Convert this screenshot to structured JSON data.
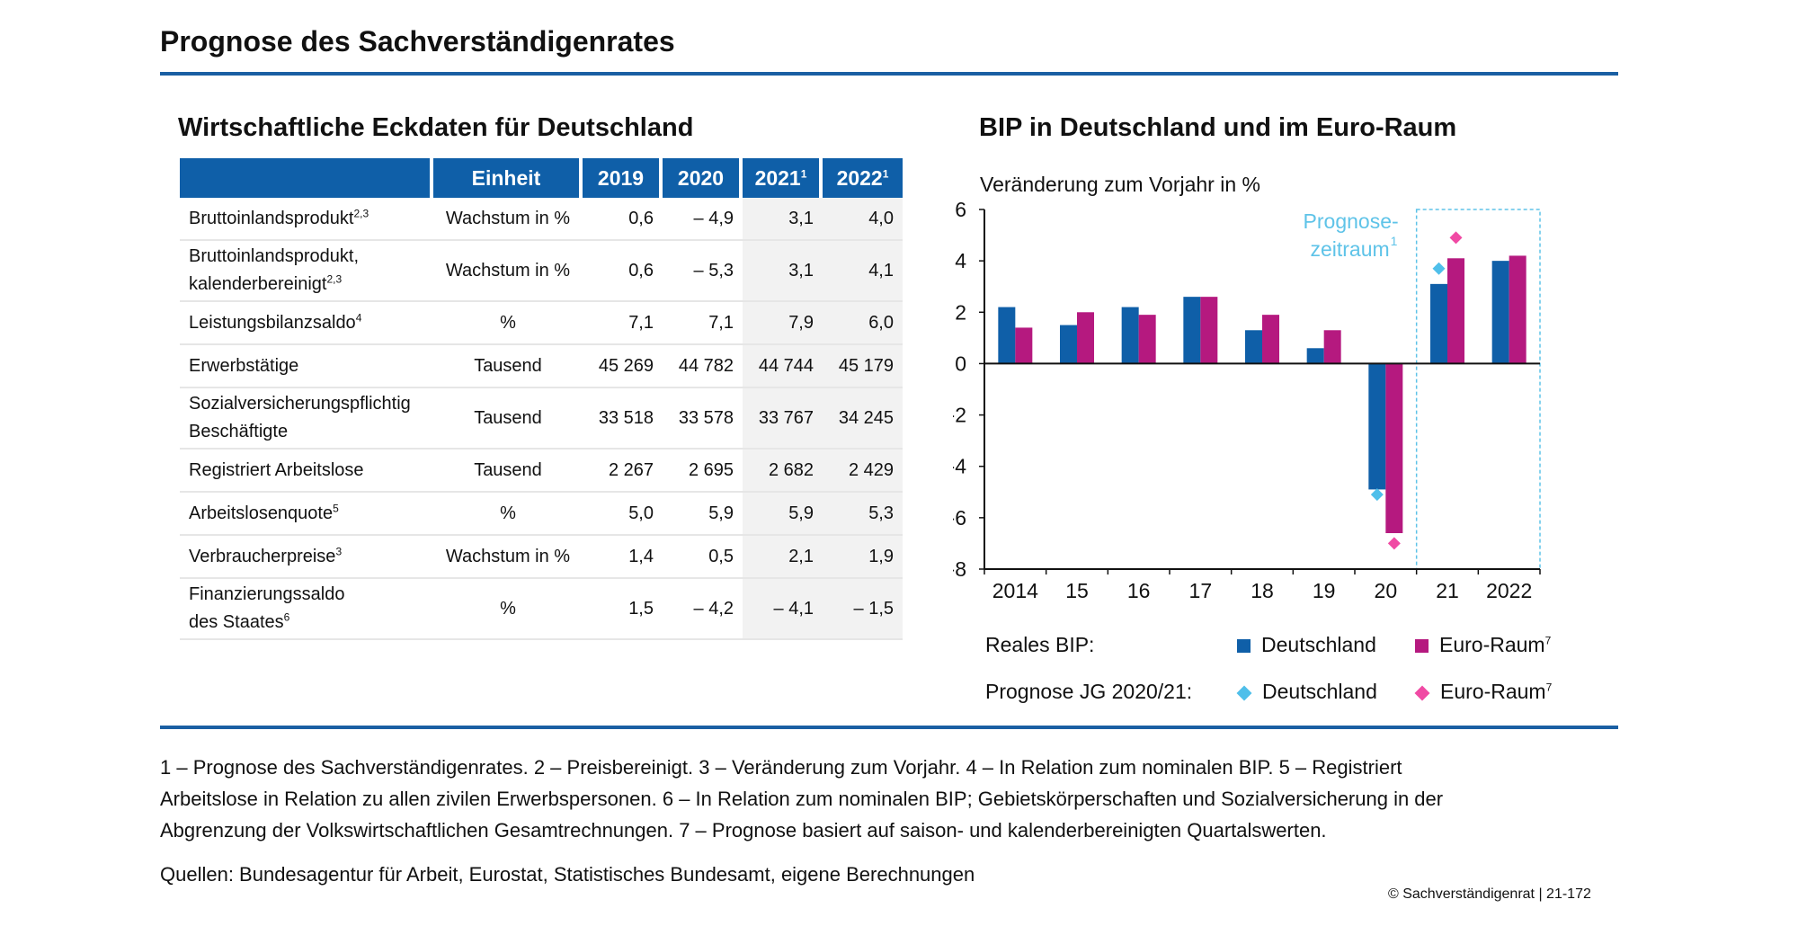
{
  "page_title": "Prognose des Sachverständigenrates",
  "table": {
    "title": "Wirtschaftliche Eckdaten für Deutschland",
    "headers": [
      {
        "text": "",
        "sup": ""
      },
      {
        "text": "Einheit",
        "sup": ""
      },
      {
        "text": "2019",
        "sup": ""
      },
      {
        "text": "2020",
        "sup": ""
      },
      {
        "text": "2021",
        "sup": "1"
      },
      {
        "text": "2022",
        "sup": "1"
      }
    ],
    "rows": [
      {
        "label_lines": [
          "Bruttoinlandsprodukt"
        ],
        "sup": "2,3",
        "unit": "Wachstum in %",
        "values": [
          "0,6",
          "– 4,9",
          "3,1",
          "4,0"
        ]
      },
      {
        "label_lines": [
          "Bruttoinlandsprodukt,",
          "kalenderbereinigt"
        ],
        "sup": "2,3",
        "unit": "Wachstum in %",
        "values": [
          "0,6",
          "– 5,3",
          "3,1",
          "4,1"
        ]
      },
      {
        "label_lines": [
          "Leistungsbilanzsaldo"
        ],
        "sup": "4",
        "unit": "%",
        "values": [
          "7,1",
          "7,1",
          "7,9",
          "6,0"
        ]
      },
      {
        "label_lines": [
          "Erwerbstätige"
        ],
        "sup": "",
        "unit": "Tausend",
        "values": [
          "45 269",
          "44 782",
          "44 744",
          "45 179"
        ]
      },
      {
        "label_lines": [
          "Sozialversicherungspflichtig",
          "Beschäftigte"
        ],
        "sup": "",
        "unit": "Tausend",
        "values": [
          "33 518",
          "33 578",
          "33 767",
          "34 245"
        ]
      },
      {
        "label_lines": [
          "Registriert Arbeitslose"
        ],
        "sup": "",
        "unit": "Tausend",
        "values": [
          "2 267",
          "2 695",
          "2 682",
          "2 429"
        ]
      },
      {
        "label_lines": [
          "Arbeitslosenquote"
        ],
        "sup": "5",
        "unit": "%",
        "values": [
          "5,0",
          "5,9",
          "5,9",
          "5,3"
        ]
      },
      {
        "label_lines": [
          "Verbraucherpreise"
        ],
        "sup": "3",
        "unit": "Wachstum in %",
        "values": [
          "1,4",
          "0,5",
          "2,1",
          "1,9"
        ]
      },
      {
        "label_lines": [
          "Finanzierungssaldo",
          "des Staates"
        ],
        "sup": "6",
        "unit": "%",
        "values": [
          "1,5",
          "– 4,2",
          "– 4,1",
          "– 1,5"
        ]
      }
    ]
  },
  "chart": {
    "title": "BIP in Deutschland und im Euro-Raum",
    "legend": {
      "row1_label": "Reales BIP:",
      "row2_label": "Prognose JG 2020/21:",
      "de": "Deutschland",
      "eu": "Euro-Raum",
      "eu_sup": "7"
    }
  },
  "chart_data": {
    "type": "bar",
    "title": "BIP in Deutschland und im Euro-Raum",
    "ylabel": "Veränderung zum Vorjahr in %",
    "categories": [
      "2014",
      "15",
      "16",
      "17",
      "18",
      "19",
      "20",
      "21",
      "2022"
    ],
    "ylim": [
      -8,
      6
    ],
    "yticks": [
      6,
      4,
      2,
      0,
      -2,
      -4,
      -6,
      -8
    ],
    "series": [
      {
        "name": "Deutschland",
        "values": [
          2.2,
          1.5,
          2.2,
          2.6,
          1.3,
          0.6,
          -4.9,
          3.1,
          4.0
        ]
      },
      {
        "name": "Euro-Raum",
        "values": [
          1.4,
          2.0,
          1.9,
          2.6,
          1.9,
          1.3,
          -6.6,
          4.1,
          4.2
        ]
      }
    ],
    "forecast_jg_2020_21": [
      {
        "name": "Deutschland",
        "points": [
          {
            "category": "20",
            "value": -5.1
          },
          {
            "category": "21",
            "value": 3.7
          }
        ]
      },
      {
        "name": "Euro-Raum",
        "points": [
          {
            "category": "20",
            "value": -7.0
          },
          {
            "category": "21",
            "value": 4.9
          }
        ]
      }
    ],
    "forecast_region": {
      "start_category": "21",
      "label_lines": [
        "Prognose-",
        "zeitraum"
      ],
      "label_sup": "1"
    },
    "colors": {
      "Deutschland": "#0f5fa8",
      "Euro-Raum": "#b5197f",
      "forecast_de": "#4fbfea",
      "forecast_eu": "#f04aa4",
      "forecast_box": "#5ec3e8"
    }
  },
  "footnotes": [
    "1 – Prognose des Sachverständigenrates.  2 – Preisbereinigt.  3 – Veränderung zum Vorjahr.  4 – In Relation zum nominalen BIP.  5 – Registriert",
    "Arbeitslose in Relation zu allen zivilen Erwerbspersonen.  6 – In Relation zum nominalen BIP; Gebietskörperschaften und Sozialversicherung in der",
    "Abgrenzung der Volkswirtschaftlichen Gesamtrechnungen.  7 – Prognose basiert auf saison- und kalenderbereinigten Quartalswerten."
  ],
  "sources": "Quellen: Bundesagentur für Arbeit, Eurostat, Statistisches Bundesamt, eigene Berechnungen",
  "copyright": "© Sachverständigenrat | 21-172"
}
